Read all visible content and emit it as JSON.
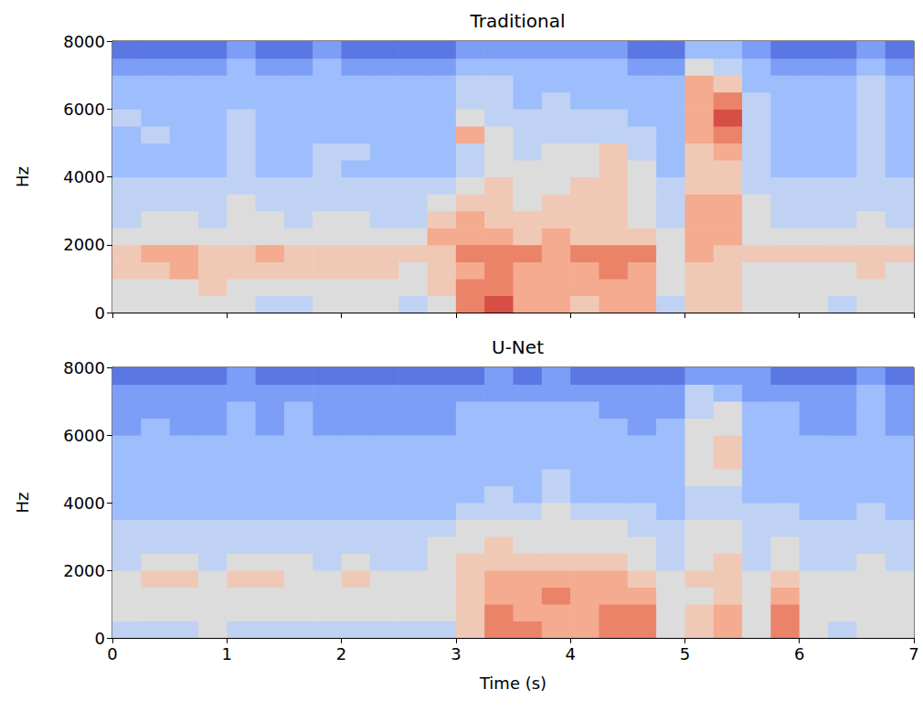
{
  "chart_data": [
    {
      "type": "heatmap",
      "title": "Traditional",
      "ylabel": "Hz",
      "tick_labels": "y",
      "xlim": [
        0,
        7
      ],
      "ylim": [
        0,
        8000
      ],
      "xticks": [
        0,
        1,
        2,
        3,
        4,
        5,
        6,
        7
      ],
      "yticks": [
        0,
        2000,
        4000,
        6000,
        8000
      ],
      "zlim": [
        0,
        10
      ],
      "time_bins": [
        0,
        0.25,
        0.5,
        0.75,
        1,
        1.25,
        1.5,
        1.75,
        2,
        2.25,
        2.5,
        2.75,
        3,
        3.25,
        3.5,
        3.75,
        4,
        4.25,
        4.5,
        4.75,
        5,
        5.25,
        5.5,
        5.75,
        6,
        6.25,
        6.5,
        6.75,
        7
      ],
      "freq_bins": [
        0,
        500,
        1000,
        1500,
        2000,
        2500,
        3000,
        3500,
        4000,
        4500,
        5000,
        5500,
        6000,
        6500,
        7000,
        7500,
        8000
      ],
      "values": [
        [
          5,
          5,
          5,
          5,
          5,
          4,
          4,
          5,
          5,
          5,
          4,
          5,
          8,
          9,
          7,
          7,
          6,
          7,
          7,
          4,
          6,
          6,
          5,
          5,
          5,
          4,
          5,
          5
        ],
        [
          5,
          5,
          5,
          6,
          5,
          5,
          5,
          5,
          5,
          5,
          5,
          6,
          8,
          8,
          7,
          7,
          7,
          7,
          7,
          5,
          6,
          6,
          5,
          5,
          5,
          5,
          5,
          5
        ],
        [
          6,
          6,
          7,
          6,
          6,
          6,
          6,
          6,
          6,
          6,
          5,
          6,
          7,
          8,
          7,
          7,
          7,
          8,
          7,
          5,
          6,
          6,
          5,
          5,
          5,
          5,
          6,
          5
        ],
        [
          6,
          7,
          7,
          6,
          6,
          7,
          6,
          6,
          6,
          6,
          6,
          6,
          8,
          8,
          8,
          7,
          8,
          8,
          8,
          5,
          7,
          6,
          6,
          6,
          6,
          6,
          6,
          6
        ],
        [
          5,
          5,
          5,
          5,
          5,
          5,
          5,
          5,
          5,
          5,
          5,
          7,
          7,
          7,
          6,
          7,
          6,
          6,
          6,
          5,
          7,
          7,
          5,
          5,
          5,
          5,
          5,
          5
        ],
        [
          4,
          5,
          5,
          4,
          5,
          5,
          4,
          5,
          5,
          4,
          4,
          6,
          7,
          6,
          6,
          6,
          6,
          6,
          5,
          4,
          7,
          7,
          5,
          4,
          4,
          4,
          5,
          4
        ],
        [
          4,
          4,
          4,
          4,
          5,
          4,
          4,
          4,
          4,
          4,
          4,
          5,
          6,
          6,
          5,
          6,
          6,
          6,
          5,
          4,
          7,
          7,
          5,
          4,
          4,
          4,
          4,
          4
        ],
        [
          4,
          4,
          4,
          4,
          4,
          4,
          4,
          4,
          4,
          4,
          4,
          4,
          5,
          6,
          5,
          5,
          6,
          6,
          5,
          4,
          6,
          6,
          4,
          4,
          4,
          4,
          4,
          4
        ],
        [
          3,
          3,
          3,
          3,
          4,
          3,
          3,
          4,
          3,
          3,
          3,
          3,
          4,
          5,
          5,
          5,
          5,
          6,
          5,
          3,
          6,
          6,
          4,
          3,
          3,
          3,
          4,
          3
        ],
        [
          3,
          3,
          3,
          3,
          4,
          3,
          3,
          4,
          4,
          3,
          3,
          3,
          4,
          5,
          4,
          5,
          5,
          6,
          4,
          3,
          6,
          7,
          4,
          3,
          3,
          3,
          4,
          3
        ],
        [
          3,
          4,
          3,
          3,
          4,
          3,
          3,
          3,
          3,
          3,
          3,
          3,
          7,
          5,
          4,
          4,
          4,
          4,
          4,
          3,
          7,
          8,
          4,
          3,
          3,
          3,
          4,
          3
        ],
        [
          4,
          3,
          3,
          3,
          4,
          3,
          3,
          3,
          3,
          3,
          3,
          3,
          5,
          4,
          4,
          4,
          4,
          4,
          3,
          3,
          7,
          9,
          4,
          3,
          3,
          3,
          4,
          3
        ],
        [
          3,
          3,
          3,
          3,
          3,
          3,
          3,
          3,
          3,
          3,
          3,
          3,
          4,
          4,
          3,
          4,
          3,
          3,
          3,
          3,
          7,
          8,
          4,
          3,
          3,
          3,
          4,
          3
        ],
        [
          3,
          3,
          3,
          3,
          3,
          3,
          3,
          3,
          3,
          3,
          3,
          3,
          4,
          4,
          3,
          3,
          3,
          3,
          3,
          3,
          7,
          6,
          3,
          3,
          3,
          3,
          4,
          3
        ],
        [
          2,
          2,
          2,
          2,
          3,
          2,
          2,
          3,
          2,
          2,
          2,
          2,
          3,
          3,
          3,
          3,
          3,
          3,
          2,
          2,
          5,
          4,
          3,
          2,
          2,
          2,
          3,
          2
        ],
        [
          1,
          1,
          1,
          1,
          2,
          1,
          1,
          2,
          1,
          1,
          1,
          1,
          2,
          2,
          2,
          2,
          2,
          2,
          1,
          1,
          3,
          3,
          2,
          1,
          1,
          1,
          2,
          1
        ]
      ]
    },
    {
      "type": "heatmap",
      "title": "U-Net",
      "ylabel": "Hz",
      "xlabel": "Time (s)",
      "xlim": [
        0,
        7
      ],
      "ylim": [
        0,
        8000
      ],
      "xticks": [
        0,
        1,
        2,
        3,
        4,
        5,
        6,
        7
      ],
      "yticks": [
        0,
        2000,
        4000,
        6000,
        8000
      ],
      "zlim": [
        0,
        10
      ],
      "time_bins": [
        0,
        0.25,
        0.5,
        0.75,
        1,
        1.25,
        1.5,
        1.75,
        2,
        2.25,
        2.5,
        2.75,
        3,
        3.25,
        3.5,
        3.75,
        4,
        4.25,
        4.5,
        4.75,
        5,
        5.25,
        5.5,
        5.75,
        6,
        6.25,
        6.5,
        6.75,
        7
      ],
      "freq_bins": [
        0,
        500,
        1000,
        1500,
        2000,
        2500,
        3000,
        3500,
        4000,
        4500,
        5000,
        5500,
        6000,
        6500,
        7000,
        7500,
        8000
      ],
      "values": [
        [
          4,
          4,
          4,
          5,
          4,
          4,
          4,
          4,
          4,
          4,
          4,
          4,
          6,
          8,
          8,
          7,
          7,
          8,
          8,
          5,
          6,
          7,
          5,
          8,
          5,
          4,
          5,
          5
        ],
        [
          5,
          5,
          5,
          5,
          5,
          5,
          5,
          5,
          5,
          5,
          5,
          5,
          6,
          8,
          7,
          7,
          7,
          8,
          8,
          5,
          6,
          7,
          5,
          8,
          5,
          5,
          5,
          5
        ],
        [
          5,
          5,
          5,
          5,
          5,
          5,
          5,
          5,
          5,
          5,
          5,
          5,
          6,
          7,
          7,
          8,
          7,
          7,
          7,
          5,
          5,
          6,
          5,
          7,
          5,
          5,
          5,
          5
        ],
        [
          5,
          6,
          6,
          5,
          6,
          6,
          5,
          5,
          6,
          5,
          5,
          5,
          6,
          7,
          7,
          7,
          7,
          7,
          6,
          5,
          6,
          6,
          5,
          6,
          5,
          5,
          5,
          5
        ],
        [
          4,
          5,
          5,
          4,
          5,
          5,
          5,
          4,
          5,
          4,
          4,
          5,
          6,
          6,
          6,
          6,
          6,
          6,
          5,
          4,
          5,
          6,
          4,
          5,
          4,
          4,
          5,
          4
        ],
        [
          4,
          4,
          4,
          4,
          4,
          4,
          4,
          4,
          4,
          4,
          4,
          5,
          5,
          6,
          5,
          5,
          5,
          5,
          5,
          4,
          5,
          5,
          4,
          5,
          4,
          4,
          4,
          4
        ],
        [
          4,
          4,
          4,
          4,
          4,
          4,
          4,
          4,
          4,
          4,
          4,
          4,
          5,
          5,
          5,
          5,
          5,
          5,
          4,
          4,
          5,
          5,
          4,
          4,
          4,
          4,
          4,
          4
        ],
        [
          3,
          3,
          3,
          3,
          3,
          3,
          3,
          3,
          3,
          3,
          3,
          3,
          4,
          4,
          4,
          5,
          4,
          4,
          4,
          3,
          4,
          4,
          4,
          4,
          3,
          3,
          4,
          3
        ],
        [
          3,
          3,
          3,
          3,
          3,
          3,
          3,
          3,
          3,
          3,
          3,
          3,
          3,
          4,
          3,
          4,
          3,
          3,
          3,
          3,
          4,
          4,
          3,
          3,
          3,
          3,
          3,
          3
        ],
        [
          3,
          3,
          3,
          3,
          3,
          3,
          3,
          3,
          3,
          3,
          3,
          3,
          3,
          3,
          3,
          4,
          3,
          3,
          3,
          3,
          5,
          5,
          3,
          3,
          3,
          3,
          3,
          3
        ],
        [
          3,
          3,
          3,
          3,
          3,
          3,
          3,
          3,
          3,
          3,
          3,
          3,
          3,
          3,
          3,
          3,
          3,
          3,
          3,
          3,
          5,
          6,
          3,
          3,
          3,
          3,
          3,
          3
        ],
        [
          3,
          3,
          3,
          3,
          3,
          3,
          3,
          3,
          3,
          3,
          3,
          3,
          3,
          3,
          3,
          3,
          3,
          3,
          3,
          3,
          5,
          6,
          3,
          3,
          3,
          3,
          3,
          3
        ],
        [
          2,
          3,
          2,
          2,
          3,
          2,
          3,
          2,
          2,
          2,
          2,
          2,
          3,
          3,
          3,
          3,
          3,
          3,
          2,
          3,
          5,
          5,
          3,
          3,
          2,
          2,
          3,
          2
        ],
        [
          2,
          2,
          2,
          2,
          3,
          2,
          3,
          2,
          2,
          2,
          2,
          2,
          3,
          3,
          3,
          3,
          3,
          2,
          2,
          2,
          4,
          5,
          3,
          3,
          2,
          2,
          3,
          2
        ],
        [
          2,
          2,
          2,
          2,
          2,
          2,
          2,
          2,
          2,
          2,
          2,
          2,
          2,
          2,
          2,
          2,
          2,
          2,
          2,
          2,
          4,
          3,
          2,
          2,
          2,
          2,
          3,
          2
        ],
        [
          1,
          1,
          1,
          1,
          2,
          1,
          1,
          1,
          1,
          1,
          1,
          1,
          1,
          2,
          1,
          2,
          1,
          1,
          1,
          1,
          2,
          2,
          2,
          1,
          1,
          1,
          2,
          1
        ]
      ]
    }
  ]
}
